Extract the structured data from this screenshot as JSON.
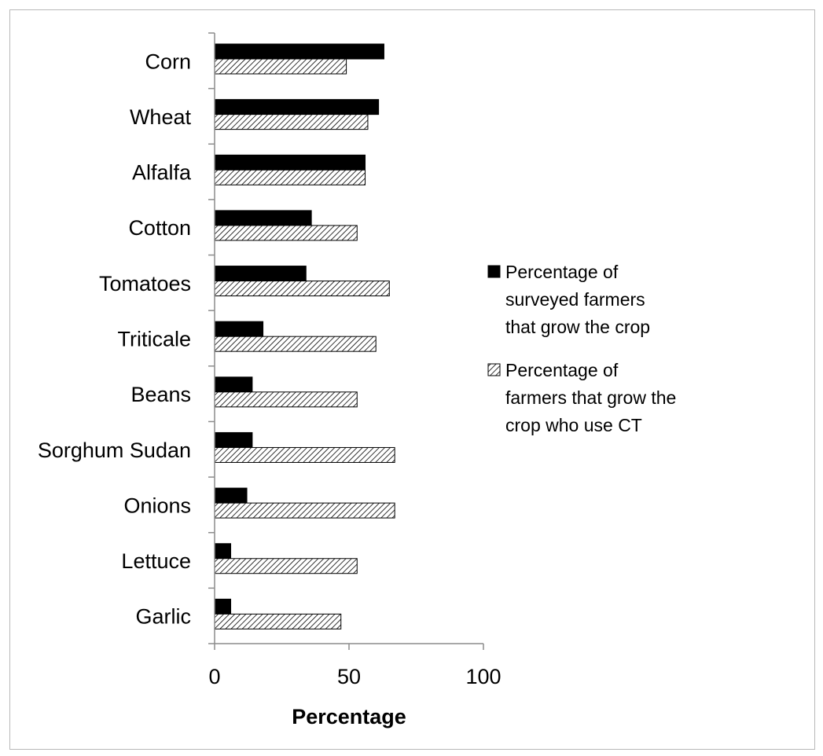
{
  "chart_data": {
    "type": "bar",
    "orientation": "horizontal",
    "categories": [
      "Corn",
      "Wheat",
      "Alfalfa",
      "Cotton",
      "Tomatoes",
      "Triticale",
      "Beans",
      "Sorghum Sudan",
      "Onions",
      "Lettuce",
      "Garlic"
    ],
    "series": [
      {
        "name": "Percentage of surveyed farmers that grow the crop",
        "name_lines": [
          "Percentage of",
          "surveyed farmers",
          "that grow the crop"
        ],
        "fill": "solid",
        "color": "#000000",
        "values": [
          63,
          61,
          56,
          36,
          34,
          18,
          14,
          14,
          12,
          6,
          6
        ]
      },
      {
        "name": "Percentage of farmers that grow the crop who use CT",
        "name_lines": [
          "Percentage of",
          "farmers that grow the",
          "crop who use CT"
        ],
        "fill": "diagonal-hatch",
        "color": "#000000",
        "values": [
          49,
          57,
          56,
          53,
          65,
          60,
          53,
          67,
          67,
          53,
          47
        ]
      }
    ],
    "title": "",
    "xlabel": "Percentage",
    "ylabel": "",
    "xlim": [
      0,
      100
    ],
    "xticks": [
      0,
      50,
      100
    ],
    "grid": false,
    "legend_position": "right"
  }
}
